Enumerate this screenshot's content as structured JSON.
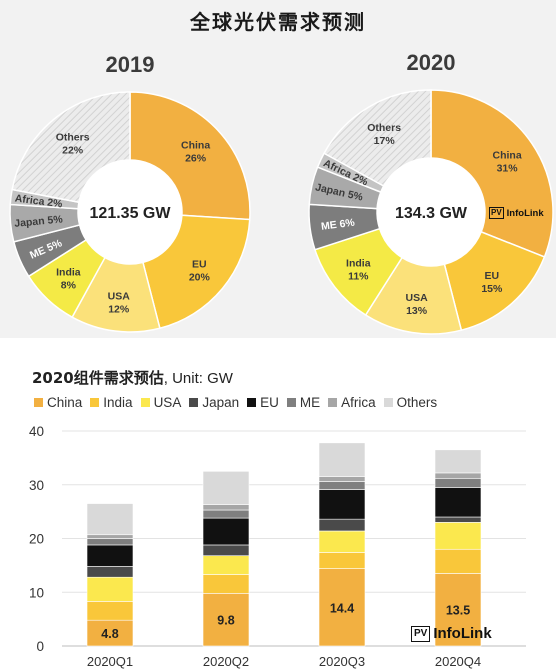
{
  "page_title": "全球光伏需求预测",
  "icons": {
    "watermark_logo": "pv-infolink-logo"
  },
  "watermark": {
    "badge": "PV",
    "text": "InfoLink"
  },
  "chart_data": [
    {
      "type": "pie",
      "donut": true,
      "title": "2019",
      "center_label": "121.35 GW",
      "slices": [
        {
          "name": "China",
          "value": 26,
          "label": "26%",
          "color": "#f2b041"
        },
        {
          "name": "EU",
          "value": 20,
          "label": "20%",
          "color": "#f9c73a"
        },
        {
          "name": "USA",
          "value": 12,
          "label": "12%",
          "color": "#fbe17a"
        },
        {
          "name": "India",
          "value": 8,
          "label": "8%",
          "color": "#f4ea46"
        },
        {
          "name": "ME",
          "value": 5,
          "label": "5%",
          "color": "#7d7d7d"
        },
        {
          "name": "Japan",
          "value": 5,
          "label": "5%",
          "color": "#a9a9a9"
        },
        {
          "name": "Africa",
          "value": 2,
          "label": "2%",
          "color": "#c4c4c4"
        },
        {
          "name": "Others",
          "value": 22,
          "label": "22%",
          "color": "#e4e4e4"
        }
      ]
    },
    {
      "type": "pie",
      "donut": true,
      "title": "2020",
      "center_label": "134.3 GW",
      "slices": [
        {
          "name": "China",
          "value": 31,
          "label": "31%",
          "color": "#f2b041"
        },
        {
          "name": "EU",
          "value": 15,
          "label": "15%",
          "color": "#f9c73a"
        },
        {
          "name": "USA",
          "value": 13,
          "label": "13%",
          "color": "#fbe17a"
        },
        {
          "name": "India",
          "value": 11,
          "label": "11%",
          "color": "#f4ea46"
        },
        {
          "name": "ME",
          "value": 6,
          "label": "6%",
          "color": "#7d7d7d"
        },
        {
          "name": "Japan",
          "value": 5,
          "label": "5%",
          "color": "#a9a9a9"
        },
        {
          "name": "Africa",
          "value": 2,
          "label": "2%",
          "color": "#c4c4c4"
        },
        {
          "name": "Others",
          "value": 17,
          "label": "17%",
          "color": "#e4e4e4"
        }
      ]
    },
    {
      "type": "bar",
      "stacked": true,
      "title": "2020组件需求预估",
      "title_unit": ", Unit: GW",
      "categories": [
        "2020Q1",
        "2020Q2",
        "2020Q3",
        "2020Q4"
      ],
      "ylim": [
        0,
        40
      ],
      "yticks": [
        0,
        10,
        20,
        30,
        40
      ],
      "grid": true,
      "legend_position": "top",
      "series": [
        {
          "name": "China",
          "color": "#f2b041",
          "values": [
            4.8,
            9.8,
            14.4,
            13.5
          ],
          "data_labels": [
            "4.8",
            "9.8",
            "14.4",
            "13.5"
          ]
        },
        {
          "name": "India",
          "color": "#f9c73a",
          "values": [
            3.5,
            3.5,
            3.0,
            4.5
          ]
        },
        {
          "name": "USA",
          "color": "#fbe84e",
          "values": [
            4.5,
            3.5,
            4.0,
            5.0
          ]
        },
        {
          "name": "Japan",
          "color": "#4a4a4a",
          "values": [
            2.0,
            2.0,
            2.2,
            1.0
          ]
        },
        {
          "name": "EU",
          "color": "#111111",
          "values": [
            4.0,
            5.0,
            5.5,
            5.5
          ]
        },
        {
          "name": "ME",
          "color": "#7f7f7f",
          "values": [
            1.2,
            1.5,
            1.5,
            1.7
          ]
        },
        {
          "name": "Africa",
          "color": "#a6a6a6",
          "values": [
            0.7,
            1.0,
            0.9,
            1.0
          ]
        },
        {
          "name": "Others",
          "color": "#d9d9d9",
          "values": [
            5.8,
            6.2,
            6.3,
            4.3
          ]
        }
      ]
    }
  ]
}
